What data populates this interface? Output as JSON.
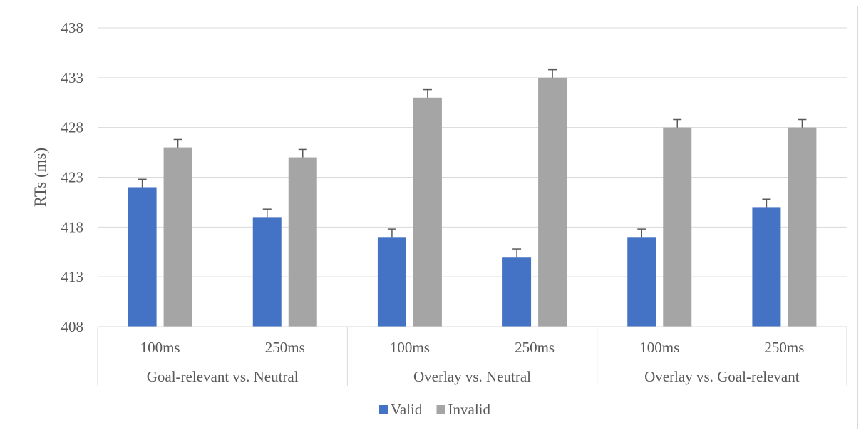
{
  "chart_data": {
    "type": "bar",
    "title": "",
    "ylabel": "RTs (ms)",
    "xlabel": "",
    "ylim": [
      408,
      438
    ],
    "yticks": [
      408,
      413,
      418,
      423,
      428,
      433,
      438
    ],
    "grid": true,
    "legend_position": "bottom",
    "groups": [
      {
        "label": "Goal-relevant vs. Neutral",
        "categories": [
          "100ms",
          "250ms"
        ]
      },
      {
        "label": "Overlay vs. Neutral",
        "categories": [
          "100ms",
          "250ms"
        ]
      },
      {
        "label": "Overlay vs. Goal-relevant",
        "categories": [
          "100ms",
          "250ms"
        ]
      }
    ],
    "series": [
      {
        "name": "Valid",
        "color": "#4472c4",
        "values": [
          422,
          419,
          417,
          415,
          417,
          420
        ],
        "error": [
          0.8,
          0.8,
          0.8,
          0.8,
          0.8,
          0.8
        ]
      },
      {
        "name": "Invalid",
        "color": "#a5a5a5",
        "values": [
          426,
          425,
          431,
          433,
          428,
          428
        ],
        "error": [
          0.8,
          0.8,
          0.8,
          0.8,
          0.8,
          0.8
        ]
      }
    ]
  }
}
